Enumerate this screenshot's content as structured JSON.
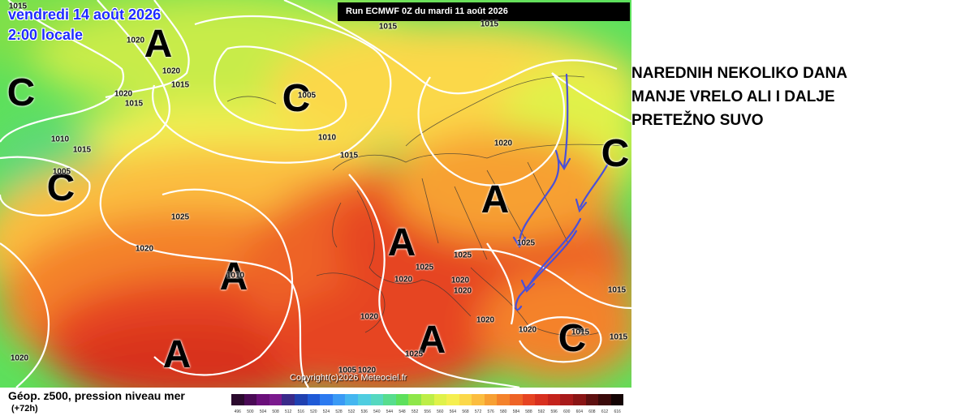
{
  "header": {
    "date": "vendredi 14 août 2026",
    "time": "2:00 locale",
    "run": "Run ECMWF 0Z du mardi 11 août 2026"
  },
  "copyright": "Copyright(c)2026 Meteociel.fr",
  "legend": {
    "title": "Géop. z500, pression niveau mer",
    "subtitle": "(+72h)",
    "ticks": [
      "496",
      "500",
      "504",
      "508",
      "512",
      "516",
      "520",
      "524",
      "528",
      "532",
      "536",
      "540",
      "544",
      "548",
      "552",
      "556",
      "560",
      "564",
      "568",
      "572",
      "576",
      "580",
      "584",
      "588",
      "592",
      "596",
      "600",
      "604",
      "608",
      "612",
      "616"
    ],
    "colors": [
      "#2b0a2e",
      "#4a0a55",
      "#6a0f7a",
      "#7b1a8e",
      "#3a2a8a",
      "#2040b0",
      "#1f5ad6",
      "#2c7af0",
      "#3a9af5",
      "#44b6f0",
      "#4fcde0",
      "#55d8c0",
      "#57dd8e",
      "#5de05c",
      "#8ee64a",
      "#bdee47",
      "#e0f24a",
      "#f5ef50",
      "#fbd84a",
      "#fbbd3f",
      "#f7a033",
      "#f4822b",
      "#ee6326",
      "#e64422",
      "#d8301f",
      "#c4231c",
      "#a81a1a",
      "#8a1515",
      "#5e1010",
      "#3a0a0a",
      "#140404"
    ]
  },
  "centers": [
    {
      "type": "A",
      "pos": "north-atlantic-high"
    },
    {
      "type": "C",
      "pos": "west-low"
    },
    {
      "type": "C",
      "pos": "iceland-low"
    },
    {
      "type": "C",
      "pos": "southwest-low"
    },
    {
      "type": "A",
      "pos": "azores-high"
    },
    {
      "type": "A",
      "pos": "southwest-high"
    },
    {
      "type": "A",
      "pos": "france-high"
    },
    {
      "type": "A",
      "pos": "poland-high"
    },
    {
      "type": "C",
      "pos": "russia-low"
    },
    {
      "type": "A",
      "pos": "mediterranean-high"
    },
    {
      "type": "C",
      "pos": "turkey-low"
    }
  ],
  "isobar_labels": [
    "1015",
    "1015",
    "1020",
    "1020",
    "1015",
    "1020",
    "1015",
    "1005",
    "1010",
    "1015",
    "1010",
    "1015",
    "1005",
    "1025",
    "1020",
    "1020",
    "1015",
    "1020",
    "1025",
    "1025",
    "1020",
    "1025",
    "1020",
    "1020",
    "1020",
    "1015",
    "1020",
    "1015",
    "1015",
    "1010",
    "1005",
    "1020",
    "1025",
    "1020"
  ],
  "headline": {
    "lines": [
      "NAREDNIH NEKOLIKO DANA",
      "MANJE VRELO ALI I DALJE",
      "PRETEŽNO SUVO"
    ]
  }
}
